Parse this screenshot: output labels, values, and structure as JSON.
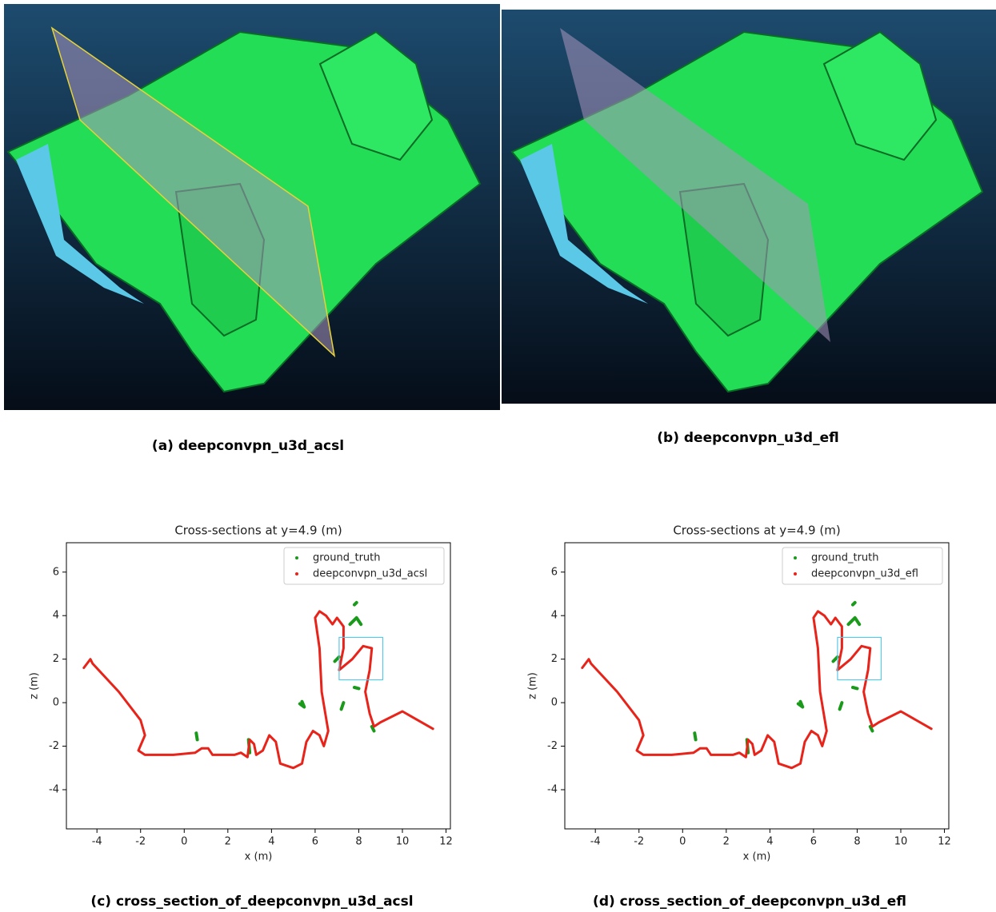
{
  "captions": [
    "(a) deepconvpn_u3d_acsl",
    "(b) deepconvpn_u3d_efl",
    "(c) cross_section_of_deepconvpn_u3d_acsl",
    "(d) cross_section_of_deepconvpn_u3d_efl"
  ],
  "chart_data": [
    {
      "type": "line",
      "title": "Cross-sections at y=4.9 (m)",
      "x_label": "x (m)",
      "y_label": "z (m)",
      "xlim": [
        -5.4,
        12.2
      ],
      "ylim": [
        -5.8,
        7.35
      ],
      "xticks": [
        -4,
        -2,
        0,
        2,
        4,
        6,
        8,
        10,
        12
      ],
      "yticks": [
        -4,
        -2,
        0,
        2,
        4,
        6
      ],
      "legend": "upper right",
      "highlight_box": {
        "x": [
          7.1,
          9.1
        ],
        "y": [
          1.05,
          3.0
        ],
        "color": "#5bc8e8"
      },
      "series": [
        {
          "name": "ground_truth",
          "color": "#1a9a1a",
          "x": [
            7.8,
            7.9,
            null,
            7.6,
            7.9,
            8.1,
            null,
            7.8,
            8.0,
            null,
            5.3,
            5.5,
            5.4,
            null,
            0.55,
            0.6,
            null,
            2.95,
            3.0,
            null,
            8.6,
            8.7,
            null,
            6.9,
            7.1,
            null,
            7.2,
            7.3
          ],
          "values": [
            4.5,
            4.6,
            null,
            3.6,
            3.9,
            3.6,
            null,
            0.7,
            0.65,
            null,
            -0.05,
            -0.2,
            0.05,
            null,
            -1.4,
            -1.7,
            null,
            -1.7,
            -2.3,
            null,
            -1.1,
            -1.3,
            null,
            1.9,
            2.1,
            null,
            -0.3,
            0.0
          ]
        },
        {
          "name": "deepconvpn_u3d_acsl",
          "color": "#e8231a",
          "x": [
            -4.6,
            -4.3,
            -4.2,
            -3.0,
            -2.0,
            -1.8,
            -2.1,
            -1.8,
            -0.5,
            0.5,
            0.8,
            1.1,
            1.3,
            2.3,
            2.6,
            2.9,
            3.0,
            3.2,
            3.3,
            3.6,
            3.9,
            4.2,
            4.4,
            5.0,
            5.4,
            5.6,
            5.9,
            6.2,
            6.4,
            6.6,
            6.3,
            6.2,
            6.0,
            6.2,
            6.5,
            6.8,
            7.0,
            7.3,
            7.3,
            7.1,
            7.7,
            8.2,
            8.6,
            8.5,
            8.3,
            8.5,
            8.7,
            9.0,
            10.0,
            11.4
          ],
          "values": [
            1.6,
            2.0,
            1.8,
            0.5,
            -0.8,
            -1.5,
            -2.2,
            -2.4,
            -2.4,
            -2.3,
            -2.1,
            -2.1,
            -2.4,
            -2.4,
            -2.3,
            -2.5,
            -1.7,
            -1.9,
            -2.4,
            -2.2,
            -1.5,
            -1.8,
            -2.8,
            -3.0,
            -2.8,
            -1.8,
            -1.3,
            -1.5,
            -2.0,
            -1.3,
            0.5,
            2.5,
            3.9,
            4.2,
            4.0,
            3.6,
            3.9,
            3.5,
            2.5,
            1.5,
            2.0,
            2.6,
            2.5,
            1.5,
            0.5,
            -0.5,
            -1.1,
            -0.9,
            -0.4,
            -1.2
          ]
        }
      ]
    },
    {
      "type": "line",
      "title": "Cross-sections at y=4.9 (m)",
      "x_label": "x (m)",
      "y_label": "z (m)",
      "xlim": [
        -5.4,
        12.2
      ],
      "ylim": [
        -5.8,
        7.35
      ],
      "xticks": [
        -4,
        -2,
        0,
        2,
        4,
        6,
        8,
        10,
        12
      ],
      "yticks": [
        -4,
        -2,
        0,
        2,
        4,
        6
      ],
      "legend": "upper right",
      "highlight_box": {
        "x": [
          7.1,
          9.1
        ],
        "y": [
          1.05,
          3.0
        ],
        "color": "#5bc8e8"
      },
      "series": [
        {
          "name": "ground_truth",
          "color": "#1a9a1a",
          "x": [
            7.8,
            7.9,
            null,
            7.6,
            7.9,
            8.1,
            null,
            7.8,
            8.0,
            null,
            5.3,
            5.5,
            5.4,
            null,
            0.55,
            0.6,
            null,
            2.95,
            3.0,
            null,
            8.6,
            8.7,
            null,
            6.9,
            7.1,
            null,
            7.2,
            7.3
          ],
          "values": [
            4.5,
            4.6,
            null,
            3.6,
            3.9,
            3.6,
            null,
            0.7,
            0.65,
            null,
            -0.05,
            -0.2,
            0.05,
            null,
            -1.4,
            -1.7,
            null,
            -1.7,
            -2.3,
            null,
            -1.1,
            -1.3,
            null,
            1.9,
            2.1,
            null,
            -0.3,
            0.0
          ]
        },
        {
          "name": "deepconvpn_u3d_efl",
          "color": "#e8231a",
          "x": [
            -4.6,
            -4.3,
            -4.2,
            -3.0,
            -2.0,
            -1.8,
            -2.1,
            -1.8,
            -0.5,
            0.5,
            0.8,
            1.1,
            1.3,
            2.3,
            2.6,
            2.9,
            3.0,
            3.2,
            3.3,
            3.6,
            3.9,
            4.2,
            4.4,
            5.0,
            5.4,
            5.6,
            5.9,
            6.2,
            6.4,
            6.6,
            6.3,
            6.2,
            6.0,
            6.2,
            6.5,
            6.8,
            7.0,
            7.3,
            7.3,
            7.1,
            7.7,
            8.2,
            8.6,
            8.5,
            8.3,
            8.5,
            8.7,
            9.0,
            10.0,
            11.4
          ],
          "values": [
            1.6,
            2.0,
            1.8,
            0.5,
            -0.8,
            -1.5,
            -2.2,
            -2.4,
            -2.4,
            -2.3,
            -2.1,
            -2.1,
            -2.4,
            -2.4,
            -2.3,
            -2.5,
            -1.7,
            -1.9,
            -2.4,
            -2.2,
            -1.5,
            -1.8,
            -2.8,
            -3.0,
            -2.8,
            -1.8,
            -1.3,
            -1.5,
            -2.0,
            -1.3,
            0.5,
            2.5,
            3.9,
            4.2,
            4.0,
            3.6,
            3.9,
            3.5,
            2.5,
            1.5,
            2.0,
            2.6,
            2.5,
            1.5,
            0.5,
            -0.5,
            -1.1,
            -0.9,
            -0.4,
            -1.2
          ]
        }
      ]
    }
  ]
}
